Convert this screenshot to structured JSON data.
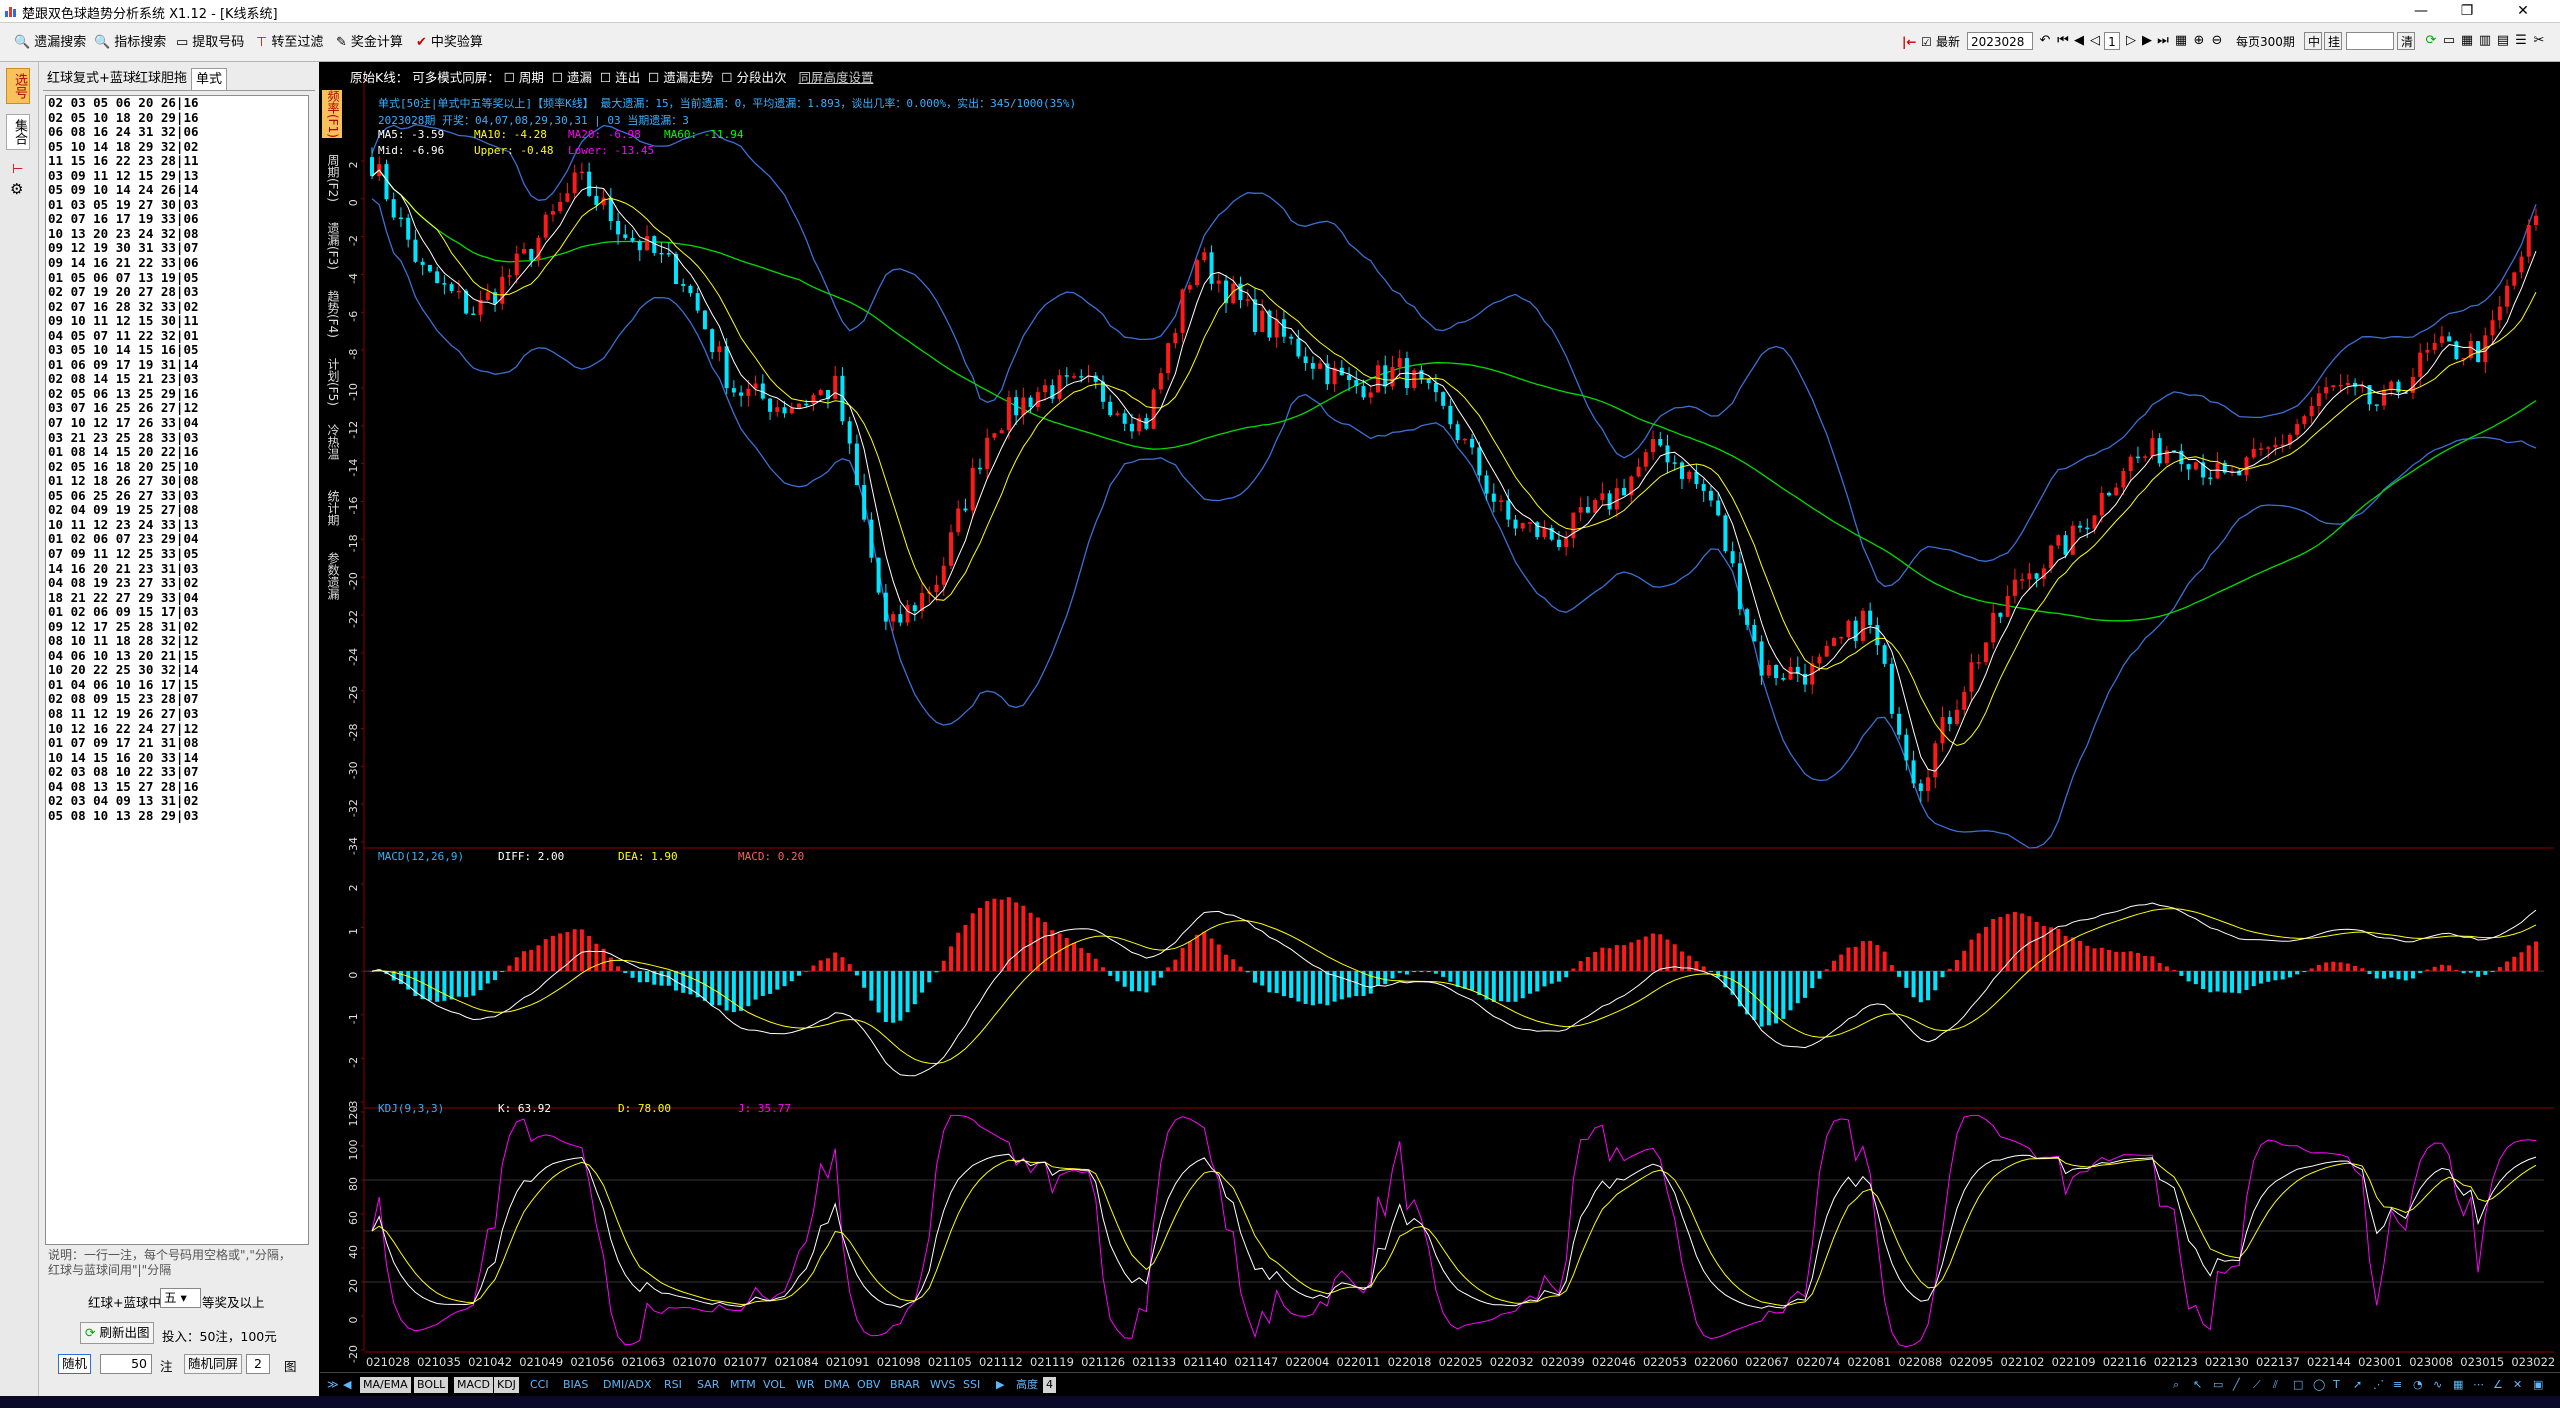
{
  "window": {
    "title": "楚跟双色球趋势分析系统 X1.12 - [K线系统]",
    "minimize": "—",
    "restore": "❐",
    "close": "✕"
  },
  "toolbar": {
    "buttons": [
      "遗漏搜索",
      "指标搜索",
      "提取号码",
      "转至过滤",
      "奖金计算",
      "中奖验算"
    ],
    "latest_label": "最新",
    "latest_value": "2023028",
    "page_value": "1",
    "per_page_label": "每页300期",
    "mode_buttons": [
      "中",
      "挂"
    ],
    "clear_label": "清"
  },
  "left_strip": {
    "tabs": [
      "选号",
      "集合"
    ]
  },
  "left_panel": {
    "tabs": [
      "红球复式+蓝球",
      "红球胆拖",
      "单式"
    ],
    "numbers": [
      "02 03 05 06 20 26|16",
      "02 05 10 18 20 29|16",
      "06 08 16 24 31 32|06",
      "05 10 14 18 29 32|02",
      "11 15 16 22 23 28|11",
      "03 09 11 12 15 29|13",
      "05 09 10 14 24 26|14",
      "01 03 05 19 27 30|03",
      "02 07 16 17 19 33|06",
      "10 13 20 23 24 32|08",
      "09 12 19 30 31 33|07",
      "09 14 16 21 22 33|06",
      "01 05 06 07 13 19|05",
      "02 07 19 20 27 28|03",
      "02 07 16 28 32 33|02",
      "09 10 11 12 15 30|11",
      "04 05 07 11 22 32|01",
      "03 05 10 14 15 16|05",
      "01 06 09 17 19 31|14",
      "02 08 14 15 21 23|03",
      "02 05 06 13 25 29|16",
      "03 07 16 25 26 27|12",
      "07 10 12 17 26 33|04",
      "03 21 23 25 28 33|03",
      "01 08 14 15 20 22|16",
      "02 05 16 18 20 25|10",
      "01 12 18 26 27 30|08",
      "05 06 25 26 27 33|03",
      "02 04 09 19 25 27|08",
      "10 11 12 23 24 33|13",
      "01 02 06 07 23 29|04",
      "07 09 11 12 25 33|05",
      "14 16 20 21 23 31|03",
      "04 08 19 23 27 33|02",
      "18 21 22 27 29 33|04",
      "01 02 06 09 15 17|03",
      "09 12 17 25 28 31|02",
      "08 10 11 18 28 32|12",
      "04 06 10 13 20 21|15",
      "10 20 22 25 30 32|14",
      "01 04 06 10 16 17|15",
      "02 08 09 15 23 28|07",
      "08 11 12 19 26 27|03",
      "10 12 16 22 24 27|12",
      "01 07 09 17 21 31|08",
      "10 14 15 16 20 33|14",
      "02 03 08 10 22 33|07",
      "04 08 13 15 27 28|16",
      "02 03 04 09 13 31|02",
      "05 08 10 13 28 29|03"
    ],
    "note": "说明：一行一注，每个号码用空格或\",\"分隔，红球与蓝球间用\"|\"分隔",
    "red_blue_label": "红球+蓝球中",
    "prize_value": "五",
    "prize_suffix": "等奖及以上",
    "refresh_label": "刷新出图",
    "bet_info": "投入：50注，100元",
    "random_label": "随机",
    "random_count": "50",
    "bets_unit": "注",
    "random_dup_label": "随机同屏",
    "dup_count": "2",
    "chart_unit": "图"
  },
  "chart_tabs": [
    "频率(F1)",
    "周期(F2)",
    "遗漏(F3)",
    "趋势(F4)",
    "计划(F5)",
    "冷热温",
    "统计期",
    "参数遗漏"
  ],
  "chart_header": {
    "label": "原始K线：",
    "options": [
      "可多模式同屏：",
      "周期",
      "遗漏",
      "连出",
      "遗漏走势",
      "分段出次"
    ],
    "height_setting": "同屏高度设置"
  },
  "kline_info": {
    "line1": "单式[50注|单式中五等奖以上]【频率K线】 最大遗漏：15，当前遗漏：0，平均遗漏：1.893，谈出几率：0.000%，实出：345/1000(35%)",
    "line2": "2023028期 开奖：04,07,08,29,30,31 | 03 当期遗漏：3",
    "ma": [
      {
        "label": "MA5: -3.59",
        "color": "#ffffff"
      },
      {
        "label": "MA10: -4.28",
        "color": "#ffff00"
      },
      {
        "label": "MA20: -6.98",
        "color": "#ff00ff"
      },
      {
        "label": "MA60: -11.94",
        "color": "#00ff00"
      }
    ],
    "boll": [
      {
        "label": "Mid: -6.96",
        "color": "#ffffff"
      },
      {
        "label": "Upper: -0.48",
        "color": "#ffff00"
      },
      {
        "label": "Lower: -13.45",
        "color": "#ff00ff"
      }
    ]
  },
  "macd_info": {
    "title": "MACD(12,26,9)",
    "diff": "DIFF: 2.00",
    "dea": "DEA: 1.90",
    "macd": "MACD: 0.20"
  },
  "kdj_info": {
    "title": "KDJ(9,3,3)",
    "k": "K: 63.92",
    "d": "D: 78.00",
    "j": "J: 35.77"
  },
  "main_axis": [
    "2",
    "0",
    "-2",
    "-4",
    "-6",
    "-8",
    "-10",
    "-12",
    "-14",
    "-16",
    "-18",
    "-20",
    "-22",
    "-24",
    "-26",
    "-28",
    "-30",
    "-32",
    "-34"
  ],
  "macd_axis": [
    "2",
    "1",
    "0",
    "-1",
    "-2",
    "-3"
  ],
  "kdj_axis": [
    "120",
    "100",
    "80",
    "60",
    "40",
    "20",
    "0",
    "-20"
  ],
  "x_labels": [
    "021028",
    "021035",
    "021042",
    "021049",
    "021056",
    "021063",
    "021070",
    "021077",
    "021084",
    "021091",
    "021098",
    "021105",
    "021112",
    "021119",
    "021126",
    "021133",
    "021140",
    "021147",
    "022004",
    "022011",
    "022018",
    "022025",
    "022032",
    "022039",
    "022046",
    "022053",
    "022060",
    "022067",
    "022074",
    "022081",
    "022088",
    "022095",
    "022102",
    "022109",
    "022116",
    "022123",
    "022130",
    "022137",
    "022144",
    "023001",
    "023008",
    "023015",
    "023022"
  ],
  "indicators": [
    "MA/EMA",
    "BOLL",
    "MACD",
    "KDJ",
    "CCI",
    "BIAS",
    "DMI/ADX",
    "RSI",
    "SAR",
    "MTM",
    "VOL",
    "WR",
    "DMA",
    "OBV",
    "BRAR",
    "WVS",
    "SSI"
  ],
  "indicators_active": [
    "MA/EMA",
    "BOLL",
    "MACD",
    "KDJ"
  ],
  "height_label": "高度",
  "height_value": "4",
  "chart_data": [
    {
      "type": "candlestick",
      "title": "频率K线",
      "ylim": [
        -34,
        3
      ],
      "ma_series": [
        "MA5",
        "MA10",
        "MA20",
        "MA60"
      ],
      "boll_series": [
        "Mid",
        "Upper",
        "Lower"
      ],
      "close_trajectory": [
        2,
        -4,
        -6,
        -3,
        1,
        -2,
        -4,
        -10,
        -11,
        -10,
        -23,
        -20,
        -12,
        -10,
        -10,
        -12,
        -3,
        -6,
        -8,
        -10,
        -9,
        -12,
        -17,
        -18,
        -16,
        -13,
        -16,
        -25,
        -25,
        -22,
        -31,
        -25,
        -20,
        -18,
        -14,
        -13,
        -15,
        -13,
        -10,
        -11,
        -8,
        -8,
        -1
      ]
    },
    {
      "type": "bar",
      "title": "MACD(12,26,9)",
      "ylim": [
        -3,
        2.5
      ],
      "last": {
        "DIFF": 2.0,
        "DEA": 1.9,
        "MACD": 0.2
      }
    },
    {
      "type": "line",
      "title": "KDJ(9,3,3)",
      "ylim": [
        -20,
        120
      ],
      "last": {
        "K": 63.92,
        "D": 78.0,
        "J": 35.77
      }
    }
  ],
  "colors": {
    "up": "#ff1a1a",
    "down": "#00e5ff",
    "ma5": "#ffffff",
    "ma10": "#ffff00",
    "ma60": "#00dd00",
    "boll": "#3a6fd6",
    "kdj_j": "#ff00ff",
    "axis": "#8a0000"
  }
}
